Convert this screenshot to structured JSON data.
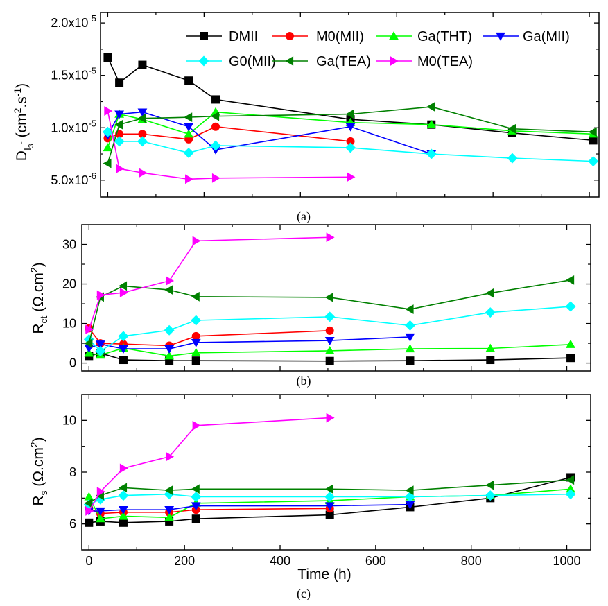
{
  "panel_labels": [
    "(a)",
    "(b)",
    "(c)"
  ],
  "xlabel": "Time (h)",
  "chart_data": [
    {
      "type": "line",
      "panel": "(a)",
      "ylabel": "D_I3- (cm2.s-1)",
      "xlim": [
        -15,
        1020
      ],
      "ylim": [
        3.4e-06,
        2.1e-05
      ],
      "yticks": [
        5e-06,
        1e-05,
        1.5e-05,
        2e-05
      ],
      "ytick_labels": [
        "5.0x10-6",
        "1.0x10-5",
        "1.5x10-5",
        "2.0x10-5"
      ],
      "xticks": [
        0,
        200,
        400,
        600,
        800,
        1000
      ],
      "legend": "top-right",
      "series": [
        {
          "name": "DMII",
          "color": "#000000",
          "marker": "square",
          "x": [
            0,
            24,
            72,
            168,
            224,
            504,
            672,
            840,
            1008
          ],
          "y": [
            1.67e-05,
            1.43e-05,
            1.6e-05,
            1.45e-05,
            1.27e-05,
            1.08e-05,
            1.03e-05,
            9.5e-06,
            8.8e-06
          ]
        },
        {
          "name": "M0(MII)",
          "color": "#ff0000",
          "marker": "circle",
          "x": [
            0,
            24,
            72,
            168,
            224,
            504
          ],
          "y": [
            9e-06,
            9.4e-06,
            9.4e-06,
            8.9e-06,
            1.01e-05,
            8.7e-06
          ]
        },
        {
          "name": "Ga(THT)",
          "color": "#00ff00",
          "marker": "triangle-up",
          "x": [
            0,
            24,
            72,
            168,
            224,
            504,
            672,
            840,
            1008
          ],
          "y": [
            8.1e-06,
            1.13e-05,
            1.08e-05,
            9.4e-06,
            1.15e-05,
            1.05e-05,
            1.03e-05,
            9.7e-06,
            9.4e-06
          ]
        },
        {
          "name": "Ga(MII)",
          "color": "#0000ff",
          "marker": "triangle-down",
          "x": [
            0,
            24,
            72,
            168,
            224,
            504,
            672
          ],
          "y": [
            9.3e-06,
            1.13e-05,
            1.15e-05,
            1.01e-05,
            7.9e-06,
            1.01e-05,
            7.5e-06
          ]
        },
        {
          "name": "G0(MII)",
          "color": "#00ffff",
          "marker": "diamond",
          "x": [
            0,
            24,
            72,
            168,
            224,
            504,
            672,
            840,
            1008
          ],
          "y": [
            9.6e-06,
            8.7e-06,
            8.7e-06,
            7.6e-06,
            8.3e-06,
            8.1e-06,
            7.5e-06,
            7.1e-06,
            6.8e-06
          ]
        },
        {
          "name": "Ga(TEA)",
          "color": "#008000",
          "marker": "triangle-left",
          "x": [
            0,
            24,
            72,
            168,
            224,
            504,
            672,
            840,
            1008
          ],
          "y": [
            6.6e-06,
            1.03e-05,
            1.09e-05,
            1.1e-05,
            1.11e-05,
            1.13e-05,
            1.2e-05,
            9.9e-06,
            9.6e-06
          ]
        },
        {
          "name": "M0(TEA)",
          "color": "#ff00ff",
          "marker": "triangle-right",
          "x": [
            0,
            24,
            72,
            168,
            224,
            504
          ],
          "y": [
            1.16e-05,
            6.1e-06,
            5.7e-06,
            5.1e-06,
            5.2e-06,
            5.3e-06
          ]
        }
      ]
    },
    {
      "type": "line",
      "panel": "(b)",
      "ylabel": "Rct (Ω.cm2)",
      "xlim": [
        -15,
        1050
      ],
      "ylim": [
        -2,
        35
      ],
      "yticks": [
        0,
        10,
        20,
        30
      ],
      "xticks": [
        0,
        200,
        400,
        600,
        800,
        1000
      ],
      "series": [
        {
          "name": "DMII",
          "x": [
            0,
            24,
            72,
            168,
            224,
            504,
            672,
            840,
            1008
          ],
          "y": [
            1.8,
            2.5,
            0.8,
            0.6,
            0.6,
            0.5,
            0.6,
            0.8,
            1.3
          ]
        },
        {
          "name": "M0(MII)",
          "x": [
            0,
            24,
            72,
            168,
            224,
            504
          ],
          "y": [
            8.8,
            5.0,
            4.8,
            4.4,
            6.8,
            8.2
          ]
        },
        {
          "name": "Ga(THT)",
          "x": [
            0,
            24,
            72,
            168,
            224,
            504,
            672,
            840,
            1008
          ],
          "y": [
            2.5,
            2.0,
            3.8,
            1.8,
            2.6,
            3.1,
            3.6,
            3.7,
            4.7
          ]
        },
        {
          "name": "Ga(MII)",
          "x": [
            0,
            24,
            72,
            168,
            224,
            504,
            672
          ],
          "y": [
            3.8,
            4.8,
            3.6,
            3.6,
            5.2,
            5.7,
            6.6
          ]
        },
        {
          "name": "G0(MII)",
          "x": [
            0,
            24,
            72,
            168,
            224,
            504,
            672,
            840,
            1008
          ],
          "y": [
            6.0,
            3.0,
            6.8,
            8.3,
            10.8,
            11.7,
            9.5,
            12.8,
            14.3
          ]
        },
        {
          "name": "Ga(TEA)",
          "x": [
            0,
            24,
            72,
            168,
            224,
            504,
            672,
            840,
            1008
          ],
          "y": [
            5.0,
            16.7,
            19.5,
            18.5,
            16.8,
            16.6,
            13.6,
            17.7,
            21.0
          ]
        },
        {
          "name": "M0(TEA)",
          "x": [
            0,
            24,
            72,
            168,
            224,
            504
          ],
          "y": [
            8.5,
            17.2,
            17.8,
            20.8,
            30.9,
            31.8
          ]
        }
      ]
    },
    {
      "type": "line",
      "panel": "(c)",
      "ylabel": "Rs (Ω.cm2)",
      "xlim": [
        -15,
        1050
      ],
      "ylim": [
        5,
        11
      ],
      "yticks": [
        6,
        8,
        10
      ],
      "xticks": [
        0,
        200,
        400,
        600,
        800,
        1000
      ],
      "series": [
        {
          "name": "DMII",
          "x": [
            0,
            24,
            72,
            168,
            224,
            504,
            672,
            840,
            1008
          ],
          "y": [
            6.05,
            6.1,
            6.05,
            6.1,
            6.2,
            6.35,
            6.65,
            7.0,
            7.8
          ]
        },
        {
          "name": "M0(MII)",
          "x": [
            0,
            24,
            72,
            168,
            224,
            504
          ],
          "y": [
            6.6,
            6.4,
            6.45,
            6.45,
            6.55,
            6.6
          ]
        },
        {
          "name": "Ga(THT)",
          "x": [
            0,
            24,
            72,
            168,
            224,
            504,
            672,
            840,
            1008
          ],
          "y": [
            7.05,
            6.2,
            6.3,
            6.25,
            6.8,
            6.9,
            7.05,
            7.1,
            7.35
          ]
        },
        {
          "name": "Ga(MII)",
          "x": [
            0,
            24,
            72,
            168,
            224,
            504,
            672
          ],
          "y": [
            6.5,
            6.5,
            6.55,
            6.55,
            6.7,
            6.7,
            6.75
          ]
        },
        {
          "name": "G0(MII)",
          "x": [
            0,
            24,
            72,
            168,
            224,
            504,
            672,
            840,
            1008
          ],
          "y": [
            6.75,
            6.95,
            7.1,
            7.15,
            7.05,
            7.05,
            7.05,
            7.1,
            7.15
          ]
        },
        {
          "name": "Ga(TEA)",
          "x": [
            0,
            24,
            72,
            168,
            224,
            504,
            672,
            840,
            1008
          ],
          "y": [
            6.8,
            7.1,
            7.4,
            7.3,
            7.35,
            7.35,
            7.3,
            7.5,
            7.7
          ]
        },
        {
          "name": "M0(TEA)",
          "x": [
            0,
            24,
            72,
            168,
            224,
            504
          ],
          "y": [
            6.5,
            7.25,
            8.15,
            8.6,
            9.8,
            10.1
          ]
        }
      ]
    }
  ]
}
